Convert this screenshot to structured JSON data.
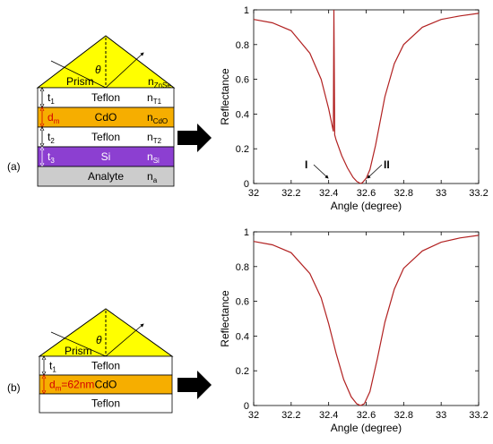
{
  "figure": {
    "panel_a": {
      "tag": "(a)",
      "prism_label": "Prism",
      "prism_index": "n",
      "prism_index_sub": "ZnSe",
      "angle_symbol": "θ",
      "layers": [
        {
          "left": "t",
          "left_sub": "1",
          "name": "Teflon",
          "index": "n",
          "index_sub": "T1",
          "fill": "#ffffff"
        },
        {
          "left": "d",
          "left_sub": "m",
          "name": "CdO",
          "index": "n",
          "index_sub": "CdO",
          "fill": "#f6ae00"
        },
        {
          "left": "t",
          "left_sub": "2",
          "name": "Teflon",
          "index": "n",
          "index_sub": "T2",
          "fill": "#ffffff"
        },
        {
          "left": "t",
          "left_sub": "3",
          "name": "Si",
          "index": "n",
          "index_sub": "Si",
          "fill": "#8c3fd1"
        },
        {
          "left": "",
          "left_sub": "",
          "name": "Analyte",
          "index": "n",
          "index_sub": "a",
          "fill": "#cccccc"
        }
      ],
      "markers": {
        "I": "I",
        "II": "II"
      }
    },
    "panel_b": {
      "tag": "(b)",
      "prism_label": "Prism",
      "angle_symbol": "θ",
      "layers": [
        {
          "left": "t",
          "left_sub": "1",
          "name": "Teflon",
          "fill": "#ffffff"
        },
        {
          "left": "d",
          "left_sub": "m",
          "left_extra": "=62nm",
          "name": "CdO",
          "fill": "#f6ae00"
        },
        {
          "left": "",
          "left_sub": "",
          "name": "Teflon",
          "fill": "#ffffff"
        }
      ]
    }
  },
  "colors": {
    "prism": "#ffff00",
    "curve": "#b22222",
    "red_text": "#d40000",
    "cdo": "#f6ae00",
    "si": "#8c3fd1",
    "analyte": "#cccccc"
  },
  "chart_data": [
    {
      "type": "line",
      "panel": "(a)",
      "xlabel": "Angle (degree)",
      "ylabel": "Reflectance",
      "xlim": [
        32,
        33.2
      ],
      "ylim": [
        0,
        1
      ],
      "xticks": [
        "32",
        "32.2",
        "32.4",
        "32.6",
        "32.8",
        "33",
        "33.2"
      ],
      "yticks": [
        "0",
        "0.2",
        "0.4",
        "0.6",
        "0.8",
        "1"
      ],
      "series": [
        {
          "x": [
            32.0,
            32.1,
            32.2,
            32.3,
            32.36,
            32.4,
            32.425,
            32.428,
            32.432,
            32.44,
            32.47,
            32.5,
            32.53,
            32.55,
            32.57,
            32.58,
            32.6,
            32.62,
            32.65,
            32.7,
            32.75,
            32.8,
            32.9,
            33.0,
            33.1,
            33.2
          ],
          "y": [
            0.945,
            0.925,
            0.88,
            0.75,
            0.6,
            0.43,
            0.3,
            1.0,
            0.28,
            0.25,
            0.16,
            0.09,
            0.035,
            0.012,
            0.0,
            0.005,
            0.03,
            0.08,
            0.22,
            0.5,
            0.69,
            0.8,
            0.9,
            0.945,
            0.965,
            0.98
          ]
        }
      ],
      "annotations": [
        "I",
        "II"
      ]
    },
    {
      "type": "line",
      "panel": "(b)",
      "xlabel": "Angle (degree)",
      "ylabel": "Reflectance",
      "xlim": [
        32,
        33.2
      ],
      "ylim": [
        0,
        1
      ],
      "xticks": [
        "32",
        "32.2",
        "32.4",
        "32.6",
        "32.8",
        "33",
        "33.2"
      ],
      "yticks": [
        "0",
        "0.2",
        "0.4",
        "0.6",
        "0.8",
        "1"
      ],
      "series": [
        {
          "x": [
            32.0,
            32.1,
            32.2,
            32.3,
            32.36,
            32.4,
            32.44,
            32.48,
            32.52,
            32.55,
            32.57,
            32.59,
            32.62,
            32.66,
            32.7,
            32.75,
            32.8,
            32.9,
            33.0,
            33.1,
            33.2
          ],
          "y": [
            0.945,
            0.925,
            0.88,
            0.76,
            0.62,
            0.47,
            0.3,
            0.15,
            0.05,
            0.01,
            0.0,
            0.01,
            0.08,
            0.27,
            0.48,
            0.67,
            0.79,
            0.89,
            0.94,
            0.965,
            0.98
          ]
        }
      ]
    }
  ]
}
